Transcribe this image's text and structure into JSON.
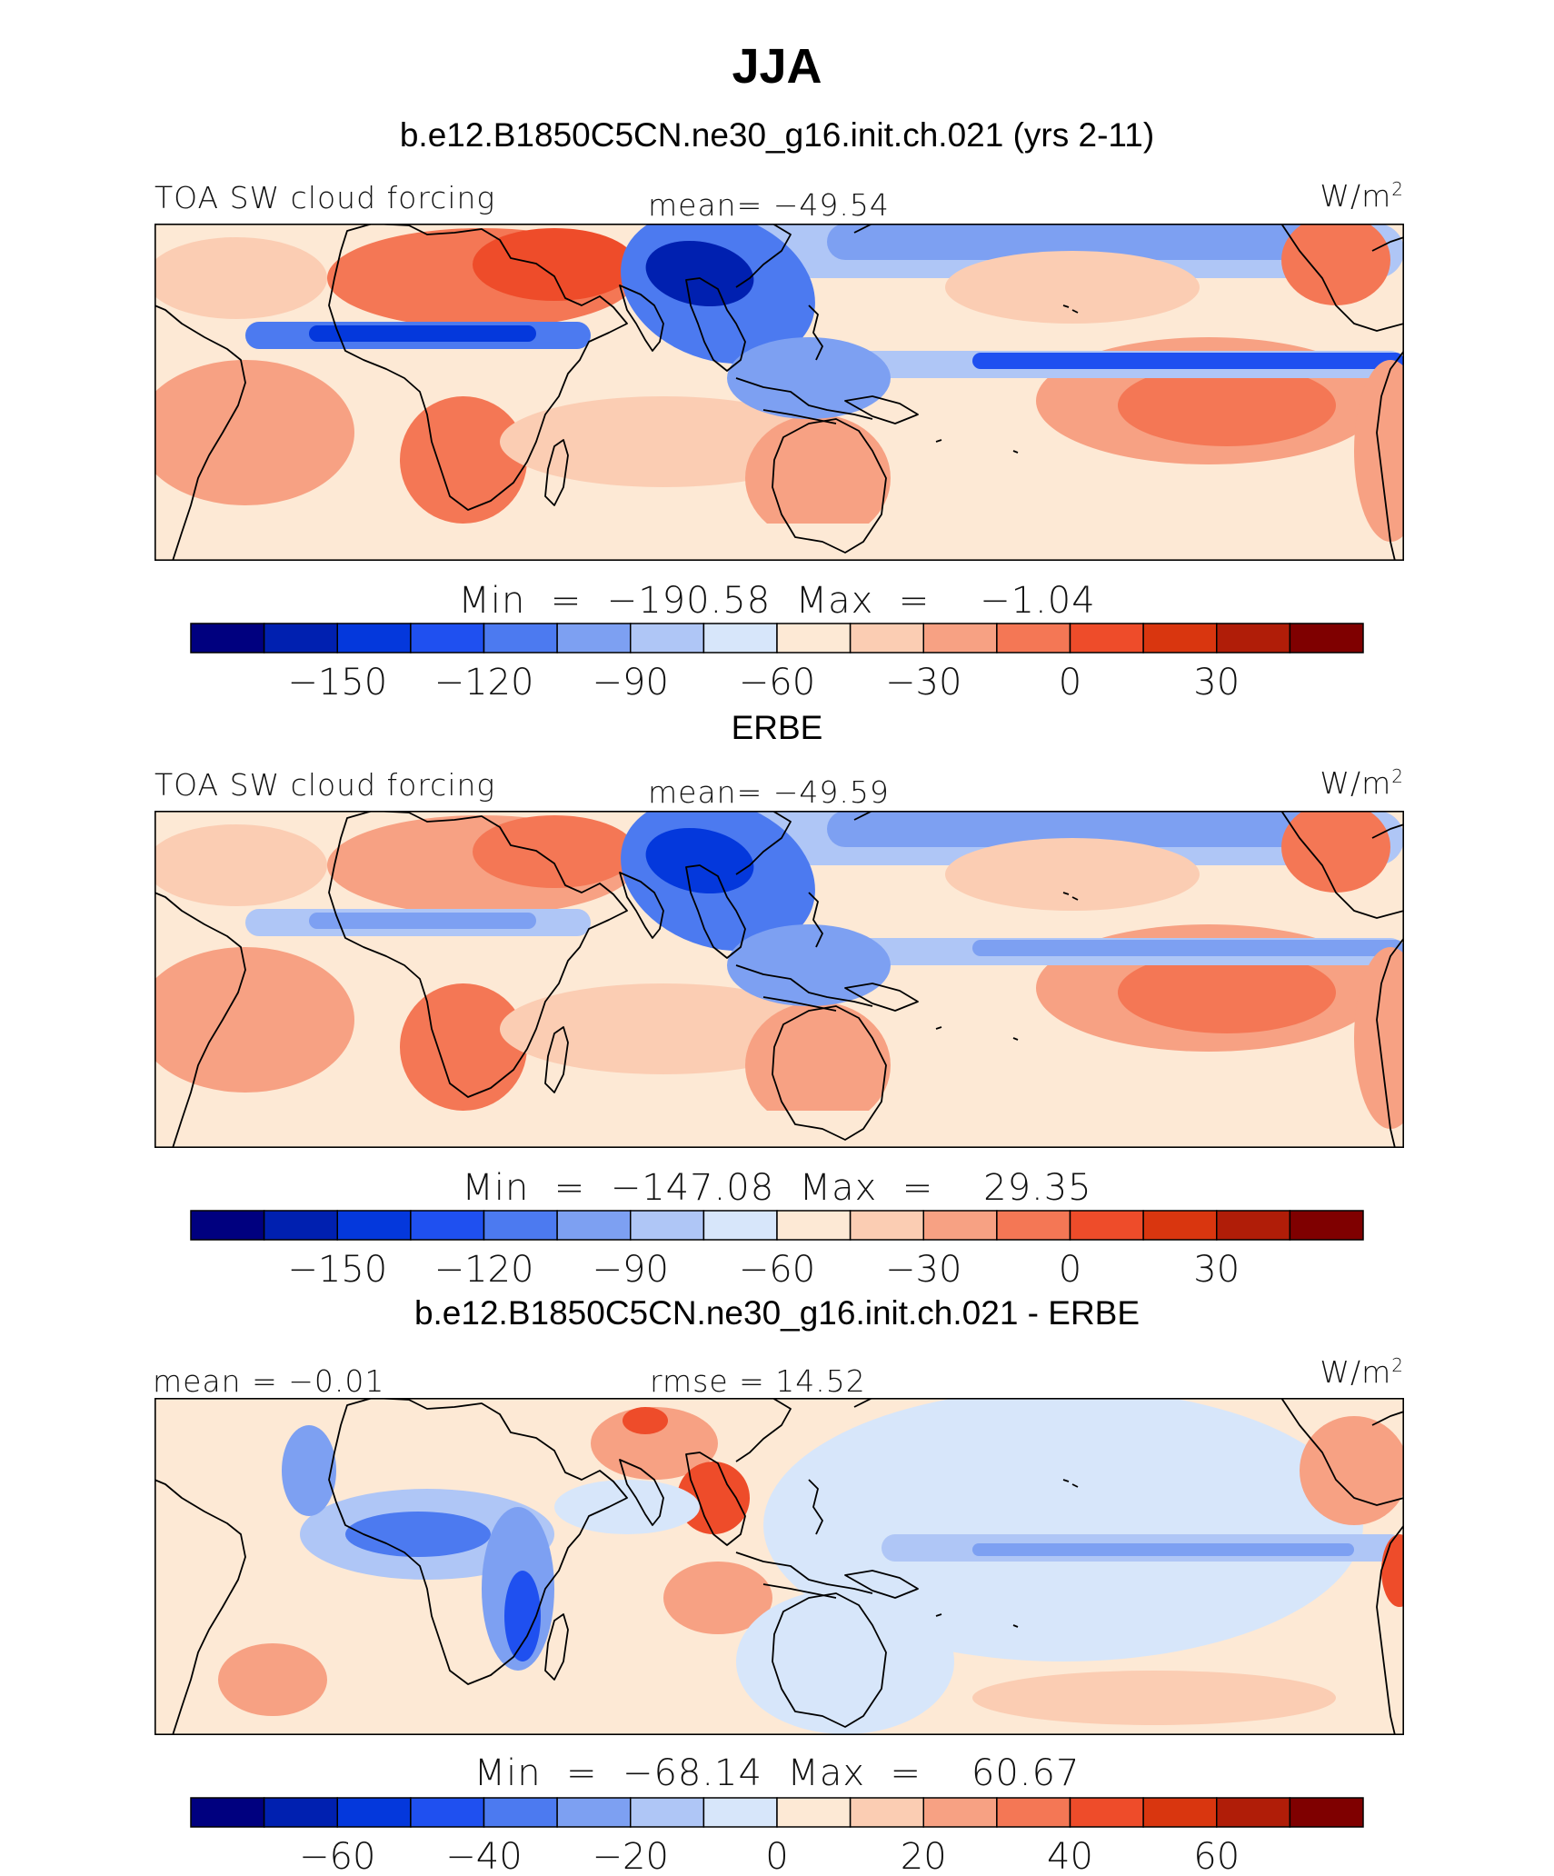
{
  "page": {
    "title": "JJA"
  },
  "chart_data": [
    {
      "type": "heatmap",
      "title": "b.e12.B1850C5CN.ne30_g16.init.ch.021 (yrs 2-11)",
      "left_label": "TOA SW cloud forcing",
      "center_label": "mean= −49.54",
      "units": "W/m",
      "units_sup": "2",
      "min_max_label": "Min  =  −190.58  Max  =    −1.04",
      "colorbar": {
        "ticks": [
          "−150",
          "−120",
          "−90",
          "−60",
          "−30",
          "0",
          "30"
        ],
        "tick_positions": [
          2,
          4,
          6,
          8,
          10,
          12,
          14
        ]
      }
    },
    {
      "type": "heatmap",
      "title": "ERBE",
      "left_label": "TOA SW cloud forcing",
      "center_label": "mean= −49.59",
      "units": "W/m",
      "units_sup": "2",
      "min_max_label": "Min  =  −147.08  Max  =    29.35",
      "colorbar": {
        "ticks": [
          "−150",
          "−120",
          "−90",
          "−60",
          "−30",
          "0",
          "30"
        ],
        "tick_positions": [
          2,
          4,
          6,
          8,
          10,
          12,
          14
        ]
      }
    },
    {
      "type": "heatmap",
      "title": "b.e12.B1850C5CN.ne30_g16.init.ch.021 - ERBE",
      "left_label": "mean =   −0.01",
      "center_label": "rmse =   14.52",
      "units": "W/m",
      "units_sup": "2",
      "min_max_label": "Min  =  −68.14  Max  =    60.67",
      "colorbar": {
        "ticks": [
          "−60",
          "−40",
          "−20",
          "0",
          "20",
          "40",
          "60"
        ],
        "tick_positions": [
          2,
          4,
          6,
          8,
          10,
          12,
          14
        ]
      }
    }
  ],
  "colors": {
    "palette": [
      "#00007f",
      "#0020b0",
      "#0438dc",
      "#1f50f0",
      "#4c7af0",
      "#7da0f2",
      "#afc6f6",
      "#d7e6fa",
      "#fde9d5",
      "#fbcdb3",
      "#f7a183",
      "#f47755",
      "#ee4c2a",
      "#d9360f",
      "#b01d08",
      "#7f0000"
    ]
  }
}
